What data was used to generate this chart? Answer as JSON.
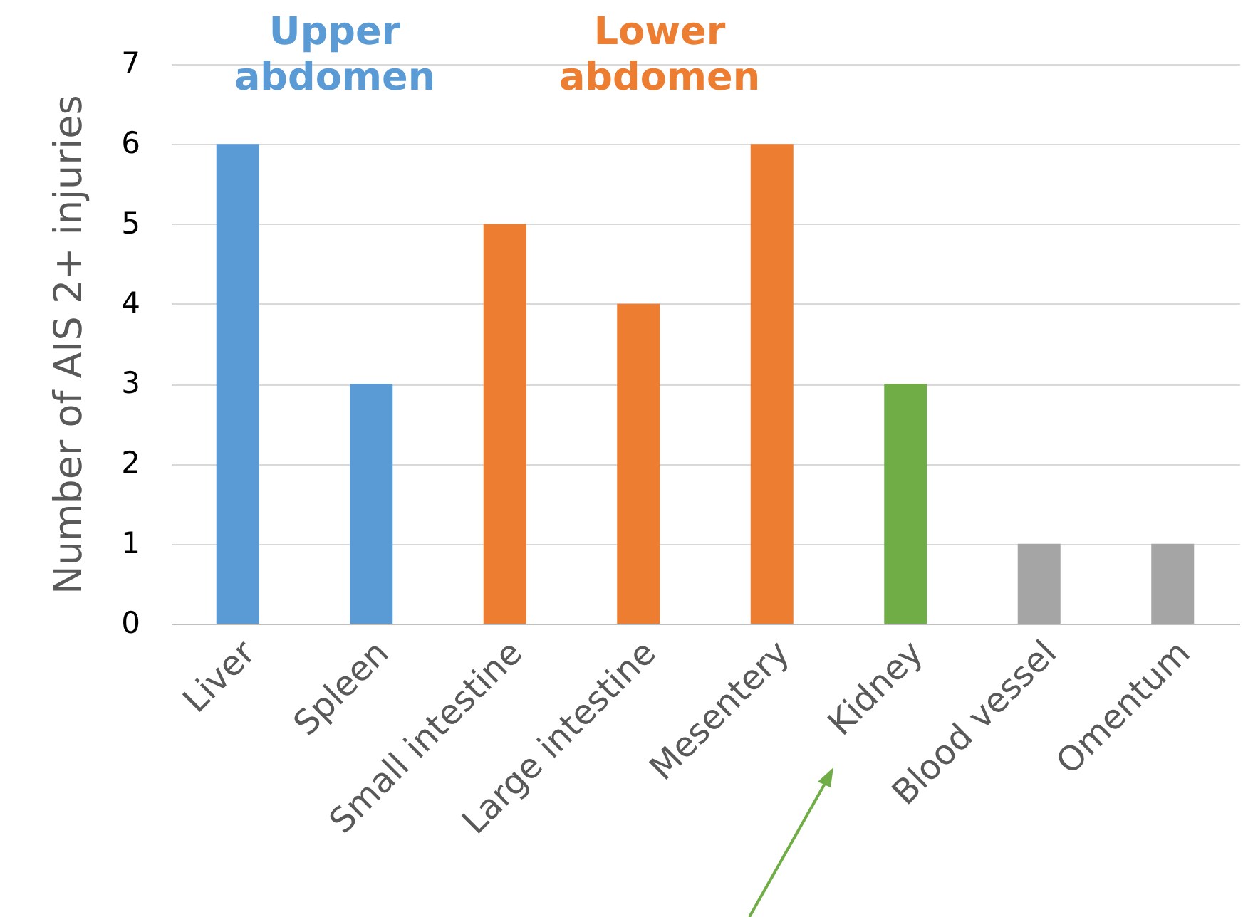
{
  "chart_data": {
    "type": "bar",
    "ylabel": "Number of AIS 2+ injuries",
    "categories": [
      "Liver",
      "Spleen",
      "Small intestine",
      "Large intestine",
      "Mesentery",
      "Kidney",
      "Blood vessel",
      "Omentum"
    ],
    "values": [
      6,
      3,
      5,
      4,
      6,
      3,
      1,
      1
    ],
    "colors": [
      "#5b9bd5",
      "#5b9bd5",
      "#ed7d31",
      "#ed7d31",
      "#ed7d31",
      "#70ad47",
      "#a5a5a5",
      "#a5a5a5"
    ],
    "ylim": [
      0,
      7
    ],
    "yticks": [
      0,
      1,
      2,
      3,
      4,
      5,
      6,
      7
    ],
    "grid": "y",
    "annotations": [
      "Upper\nabdomen",
      "Lower\nabdomen"
    ]
  }
}
